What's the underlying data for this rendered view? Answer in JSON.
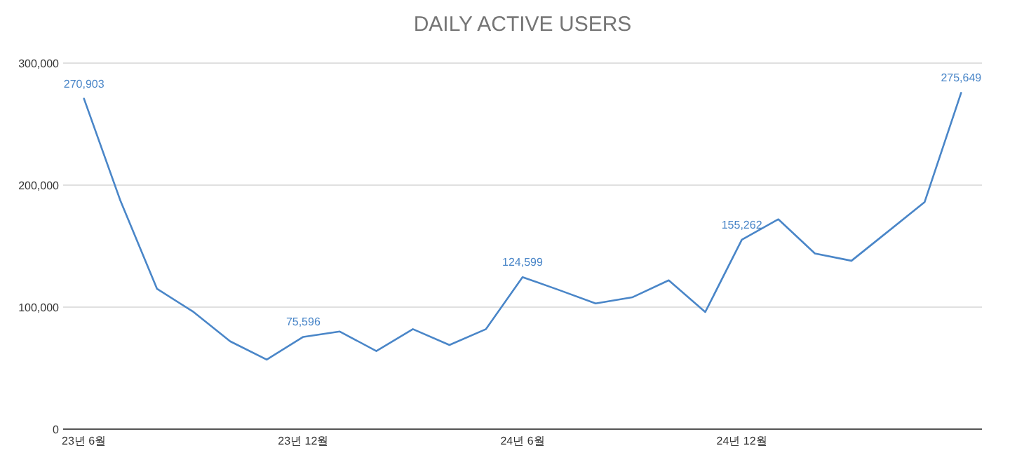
{
  "chart_data": {
    "type": "line",
    "title": "DAILY ACTIVE USERS",
    "categories": [
      "23년 6월",
      null,
      null,
      null,
      null,
      null,
      "23년 12월",
      null,
      null,
      null,
      null,
      null,
      "24년 6월",
      null,
      null,
      null,
      null,
      null,
      "24년 12월",
      null,
      null,
      null,
      null,
      null,
      null
    ],
    "series": [
      {
        "color": "#4a86c8",
        "values": [
          270903,
          187000,
          115000,
          96000,
          72000,
          57000,
          75596,
          80000,
          64000,
          82000,
          69000,
          82000,
          124599,
          114000,
          103000,
          108000,
          122000,
          96000,
          155262,
          172000,
          144000,
          138000,
          162000,
          186000,
          275649
        ],
        "value_labels": [
          "270,903",
          null,
          null,
          null,
          null,
          null,
          "75,596",
          null,
          null,
          null,
          null,
          null,
          "124,599",
          null,
          null,
          null,
          null,
          null,
          "155,262",
          null,
          null,
          null,
          null,
          null,
          "275,649"
        ]
      }
    ],
    "ylim": [
      0,
      300000
    ],
    "yticks": [
      0,
      {
        "value": 100000,
        "label": "100,000"
      },
      {
        "value": 200000,
        "label": "200,000"
      },
      {
        "value": 300000,
        "label": "300,000"
      }
    ],
    "grid": "y",
    "marker": "none",
    "line_style": "solid"
  }
}
